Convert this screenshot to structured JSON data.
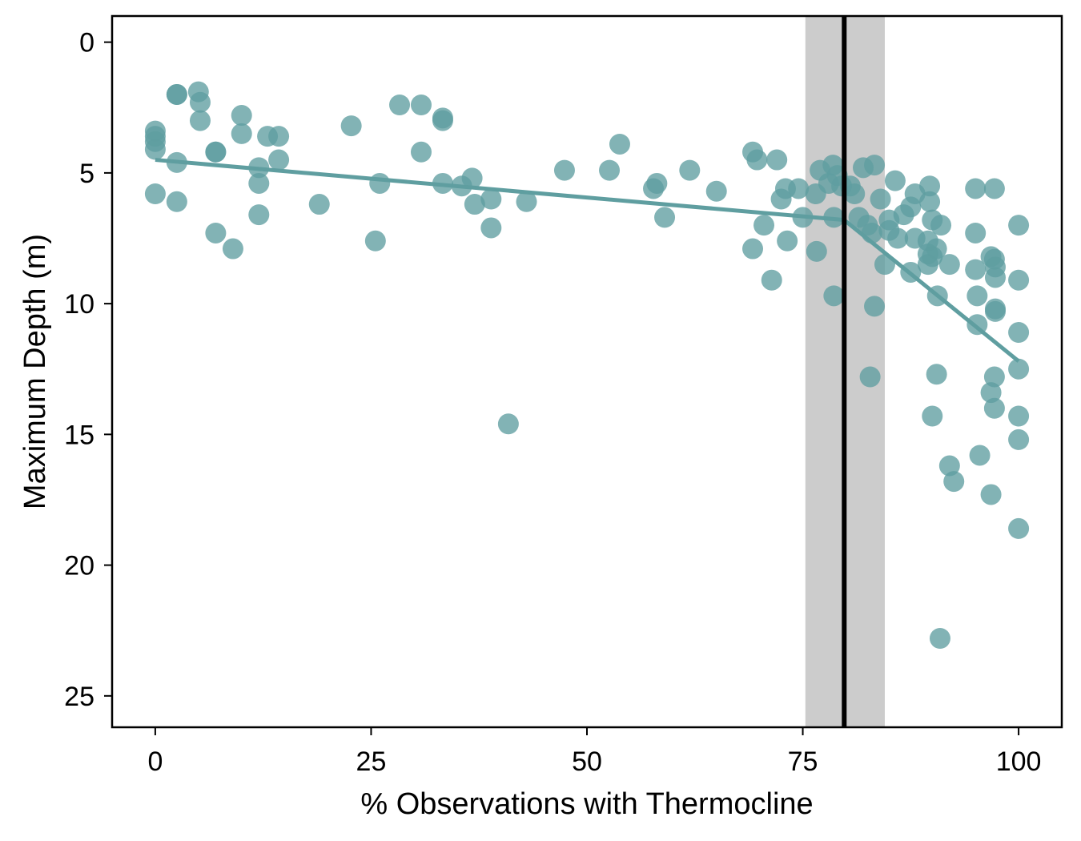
{
  "chart_data": {
    "type": "scatter",
    "xlabel": "% Observations with Thermocline",
    "ylabel": "Maximum Depth (m)",
    "xlim": [
      -5,
      105
    ],
    "ylim": [
      -1,
      26.2
    ],
    "y_axis_reversed": true,
    "xticks": [
      0,
      25,
      50,
      75,
      100
    ],
    "yticks": [
      0,
      5,
      10,
      15,
      20,
      25
    ],
    "grid": false,
    "legend": "none",
    "colors": {
      "points": "#5f9ea0",
      "trend_line": "#5f9ea0",
      "breakpoint_line": "#000000",
      "confidence_band": "#cccccc"
    },
    "breakpoint": {
      "x": 79.8,
      "ci": [
        75.3,
        84.5
      ]
    },
    "trend": [
      {
        "x": [
          0,
          79.8
        ],
        "y": [
          4.5,
          6.8
        ]
      },
      {
        "x": [
          79.8,
          100
        ],
        "y": [
          6.8,
          12.2
        ]
      }
    ],
    "points": [
      [
        0,
        3.4
      ],
      [
        0,
        3.6
      ],
      [
        0,
        3.8
      ],
      [
        0,
        4.1
      ],
      [
        0,
        5.8
      ],
      [
        2.5,
        2.0
      ],
      [
        2.5,
        2.0
      ],
      [
        2.5,
        4.6
      ],
      [
        2.5,
        6.1
      ],
      [
        5,
        1.9
      ],
      [
        5.2,
        2.3
      ],
      [
        5.2,
        3.0
      ],
      [
        7,
        4.2
      ],
      [
        7,
        4.2
      ],
      [
        7,
        7.3
      ],
      [
        9,
        7.9
      ],
      [
        10,
        2.8
      ],
      [
        10,
        3.5
      ],
      [
        12,
        4.8
      ],
      [
        12,
        5.4
      ],
      [
        12,
        6.6
      ],
      [
        13,
        3.6
      ],
      [
        14.3,
        3.6
      ],
      [
        14.3,
        4.5
      ],
      [
        19,
        6.2
      ],
      [
        22.7,
        3.2
      ],
      [
        25.5,
        7.6
      ],
      [
        26,
        5.4
      ],
      [
        28.3,
        2.4
      ],
      [
        30.8,
        2.4
      ],
      [
        30.8,
        4.2
      ],
      [
        33.3,
        2.9
      ],
      [
        33.3,
        3.0
      ],
      [
        33.3,
        5.4
      ],
      [
        35.5,
        5.5
      ],
      [
        36.7,
        5.2
      ],
      [
        37,
        6.2
      ],
      [
        38.9,
        6.0
      ],
      [
        38.9,
        7.1
      ],
      [
        40.9,
        14.6
      ],
      [
        43,
        6.1
      ],
      [
        47.4,
        4.9
      ],
      [
        52.6,
        4.9
      ],
      [
        53.8,
        3.9
      ],
      [
        57.7,
        5.6
      ],
      [
        58.1,
        5.4
      ],
      [
        59,
        6.7
      ],
      [
        61.9,
        4.9
      ],
      [
        65,
        5.7
      ],
      [
        69.2,
        4.2
      ],
      [
        69.2,
        7.9
      ],
      [
        69.7,
        4.5
      ],
      [
        70.5,
        7.0
      ],
      [
        71.4,
        9.1
      ],
      [
        72,
        4.5
      ],
      [
        72.5,
        6.0
      ],
      [
        73,
        5.6
      ],
      [
        73.2,
        7.6
      ],
      [
        74.5,
        5.6
      ],
      [
        75,
        6.7
      ],
      [
        76.5,
        5.8
      ],
      [
        76.6,
        8.0
      ],
      [
        77,
        4.9
      ],
      [
        78,
        5.4
      ],
      [
        78.5,
        4.7
      ],
      [
        78.6,
        9.7
      ],
      [
        78.6,
        6.7
      ],
      [
        79,
        5.1
      ],
      [
        79.5,
        5.5
      ],
      [
        80.5,
        5.5
      ],
      [
        81,
        5.8
      ],
      [
        81.5,
        6.7
      ],
      [
        82,
        4.8
      ],
      [
        82.5,
        7.0
      ],
      [
        82.8,
        12.8
      ],
      [
        83,
        7.3
      ],
      [
        83.3,
        4.7
      ],
      [
        83.3,
        10.1
      ],
      [
        84,
        6.0
      ],
      [
        84.5,
        8.5
      ],
      [
        85,
        7.2
      ],
      [
        85,
        6.8
      ],
      [
        85.7,
        5.3
      ],
      [
        86,
        7.5
      ],
      [
        86.7,
        6.6
      ],
      [
        87.5,
        6.3
      ],
      [
        87.5,
        8.8
      ],
      [
        88,
        5.8
      ],
      [
        88,
        7.5
      ],
      [
        89.5,
        7.6
      ],
      [
        89.5,
        8.1
      ],
      [
        89.5,
        8.5
      ],
      [
        89.7,
        5.5
      ],
      [
        89.7,
        6.1
      ],
      [
        90,
        6.8
      ],
      [
        90,
        8.2
      ],
      [
        90,
        14.3
      ],
      [
        90.5,
        7.9
      ],
      [
        90.5,
        12.7
      ],
      [
        90.6,
        9.7
      ],
      [
        91,
        7.0
      ],
      [
        90.9,
        22.8
      ],
      [
        92,
        8.5
      ],
      [
        92,
        16.2
      ],
      [
        92.5,
        16.8
      ],
      [
        95,
        5.6
      ],
      [
        95,
        7.3
      ],
      [
        95,
        8.7
      ],
      [
        95.5,
        15.8
      ],
      [
        95.2,
        9.7
      ],
      [
        95.2,
        10.8
      ],
      [
        96.8,
        8.2
      ],
      [
        96.8,
        13.4
      ],
      [
        96.8,
        17.3
      ],
      [
        97.2,
        5.6
      ],
      [
        97.2,
        8.3
      ],
      [
        97.2,
        14.0
      ],
      [
        97.2,
        12.8
      ],
      [
        97.3,
        8.6
      ],
      [
        97.3,
        9.0
      ],
      [
        97.3,
        10.2
      ],
      [
        97.3,
        10.3
      ],
      [
        100,
        7.0
      ],
      [
        100,
        9.1
      ],
      [
        100,
        11.1
      ],
      [
        100,
        12.5
      ],
      [
        100,
        14.3
      ],
      [
        100,
        15.2
      ],
      [
        100,
        18.6
      ]
    ]
  }
}
